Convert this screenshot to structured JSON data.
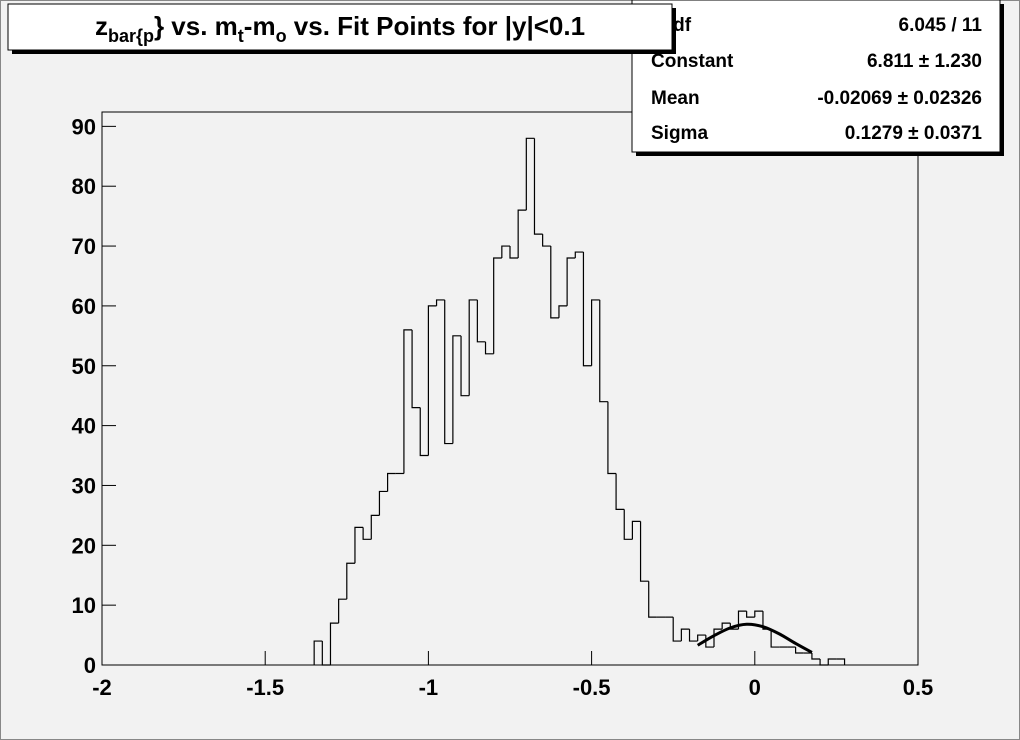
{
  "chart_data": {
    "type": "histogram",
    "title_parts": [
      "z",
      "bar{p",
      "} vs. m",
      "t",
      "-m",
      "o",
      " vs. Fit Points for |y|<0.1"
    ],
    "bins": [
      -1.35,
      -1.325,
      -1.3,
      -1.275,
      -1.25,
      -1.225,
      -1.2,
      -1.175,
      -1.15,
      -1.125,
      -1.1,
      -1.075,
      -1.05,
      -1.025,
      -1.0,
      -0.975,
      -0.95,
      -0.925,
      -0.9,
      -0.875,
      -0.85,
      -0.825,
      -0.8,
      -0.775,
      -0.75,
      -0.725,
      -0.7,
      -0.675,
      -0.65,
      -0.625,
      -0.6,
      -0.575,
      -0.55,
      -0.525,
      -0.5,
      -0.475,
      -0.45,
      -0.425,
      -0.4,
      -0.375,
      -0.35,
      -0.325,
      -0.3,
      -0.275,
      -0.25,
      -0.225,
      -0.2,
      -0.175,
      -0.15,
      -0.125,
      -0.1,
      -0.075,
      -0.05,
      -0.025,
      0.0,
      0.025,
      0.05,
      0.075,
      0.1,
      0.125,
      0.15,
      0.175,
      0.2,
      0.225,
      0.25,
      0.275
    ],
    "counts": [
      4,
      0,
      7,
      11,
      17,
      23,
      21,
      25,
      29,
      32,
      32,
      56,
      43,
      35,
      60,
      61,
      37,
      55,
      45,
      61,
      54,
      52,
      68,
      70,
      68,
      76,
      88,
      72,
      70,
      58,
      60,
      68,
      69,
      50,
      61,
      44,
      32,
      26,
      21,
      24,
      14,
      8,
      8,
      8,
      4,
      6,
      4,
      5,
      3,
      6,
      7,
      6,
      9,
      8,
      9,
      6,
      3,
      3,
      3,
      2,
      2,
      1,
      0,
      1,
      1
    ],
    "color": "#000000",
    "fit": {
      "x": [
        -0.175,
        -0.125,
        -0.075,
        -0.025,
        0.025,
        0.075,
        0.125,
        0.175
      ],
      "y": [
        3.3,
        4.9,
        6.2,
        6.8,
        6.4,
        5.2,
        3.6,
        2.1
      ],
      "color": "#000000"
    },
    "xlim": [
      -2,
      0.5
    ],
    "xticks": [
      -2,
      -1.5,
      -1,
      -0.5,
      0,
      0.5
    ],
    "ylim": [
      0,
      92.4
    ],
    "yticks": [
      0,
      10,
      20,
      30,
      40,
      50,
      60,
      70,
      80,
      90
    ],
    "stats": [
      {
        "label": "/ ndf",
        "value": "6.045 / 11"
      },
      {
        "label": "Constant",
        "value": "6.811 ± 1.230"
      },
      {
        "label": "Mean",
        "value": "-0.02069 ± 0.02326"
      },
      {
        "label": "Sigma",
        "value": "0.1279 ± 0.0371"
      }
    ]
  }
}
